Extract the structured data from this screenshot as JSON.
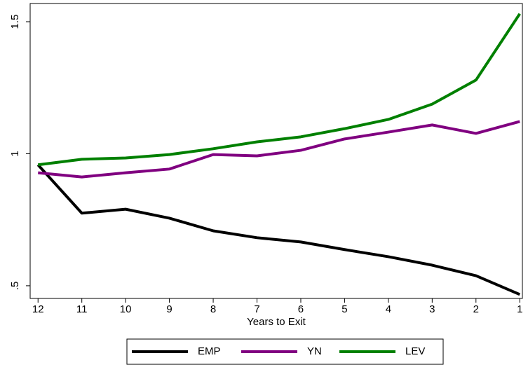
{
  "chart_data": {
    "type": "line",
    "x_label": "Years to Exit",
    "x": [
      12,
      11,
      10,
      9,
      8,
      7,
      6,
      5,
      4,
      3,
      2,
      1
    ],
    "xlim": [
      12.18,
      0.94
    ],
    "xticks": [
      12,
      11,
      10,
      9,
      8,
      7,
      6,
      5,
      4,
      3,
      2,
      1
    ],
    "ylim": [
      0.452,
      1.569
    ],
    "yticks": [
      {
        "value": 0.5,
        "label": ".5"
      },
      1,
      1.5
    ],
    "legend": "bottom",
    "series": [
      {
        "name": "EMP",
        "color": "#000000",
        "values": [
          0.958,
          0.775,
          0.79,
          0.756,
          0.708,
          0.682,
          0.666,
          0.637,
          0.61,
          0.578,
          0.538,
          0.467
        ]
      },
      {
        "name": "YN",
        "color": "#800080",
        "values": [
          0.928,
          0.912,
          0.928,
          0.942,
          0.997,
          0.992,
          1.013,
          1.056,
          1.082,
          1.109,
          1.077,
          1.122
        ]
      },
      {
        "name": "LEV",
        "color": "#008000",
        "values": [
          0.958,
          0.979,
          0.984,
          0.997,
          1.019,
          1.045,
          1.064,
          1.095,
          1.13,
          1.188,
          1.279,
          1.53
        ]
      }
    ]
  }
}
